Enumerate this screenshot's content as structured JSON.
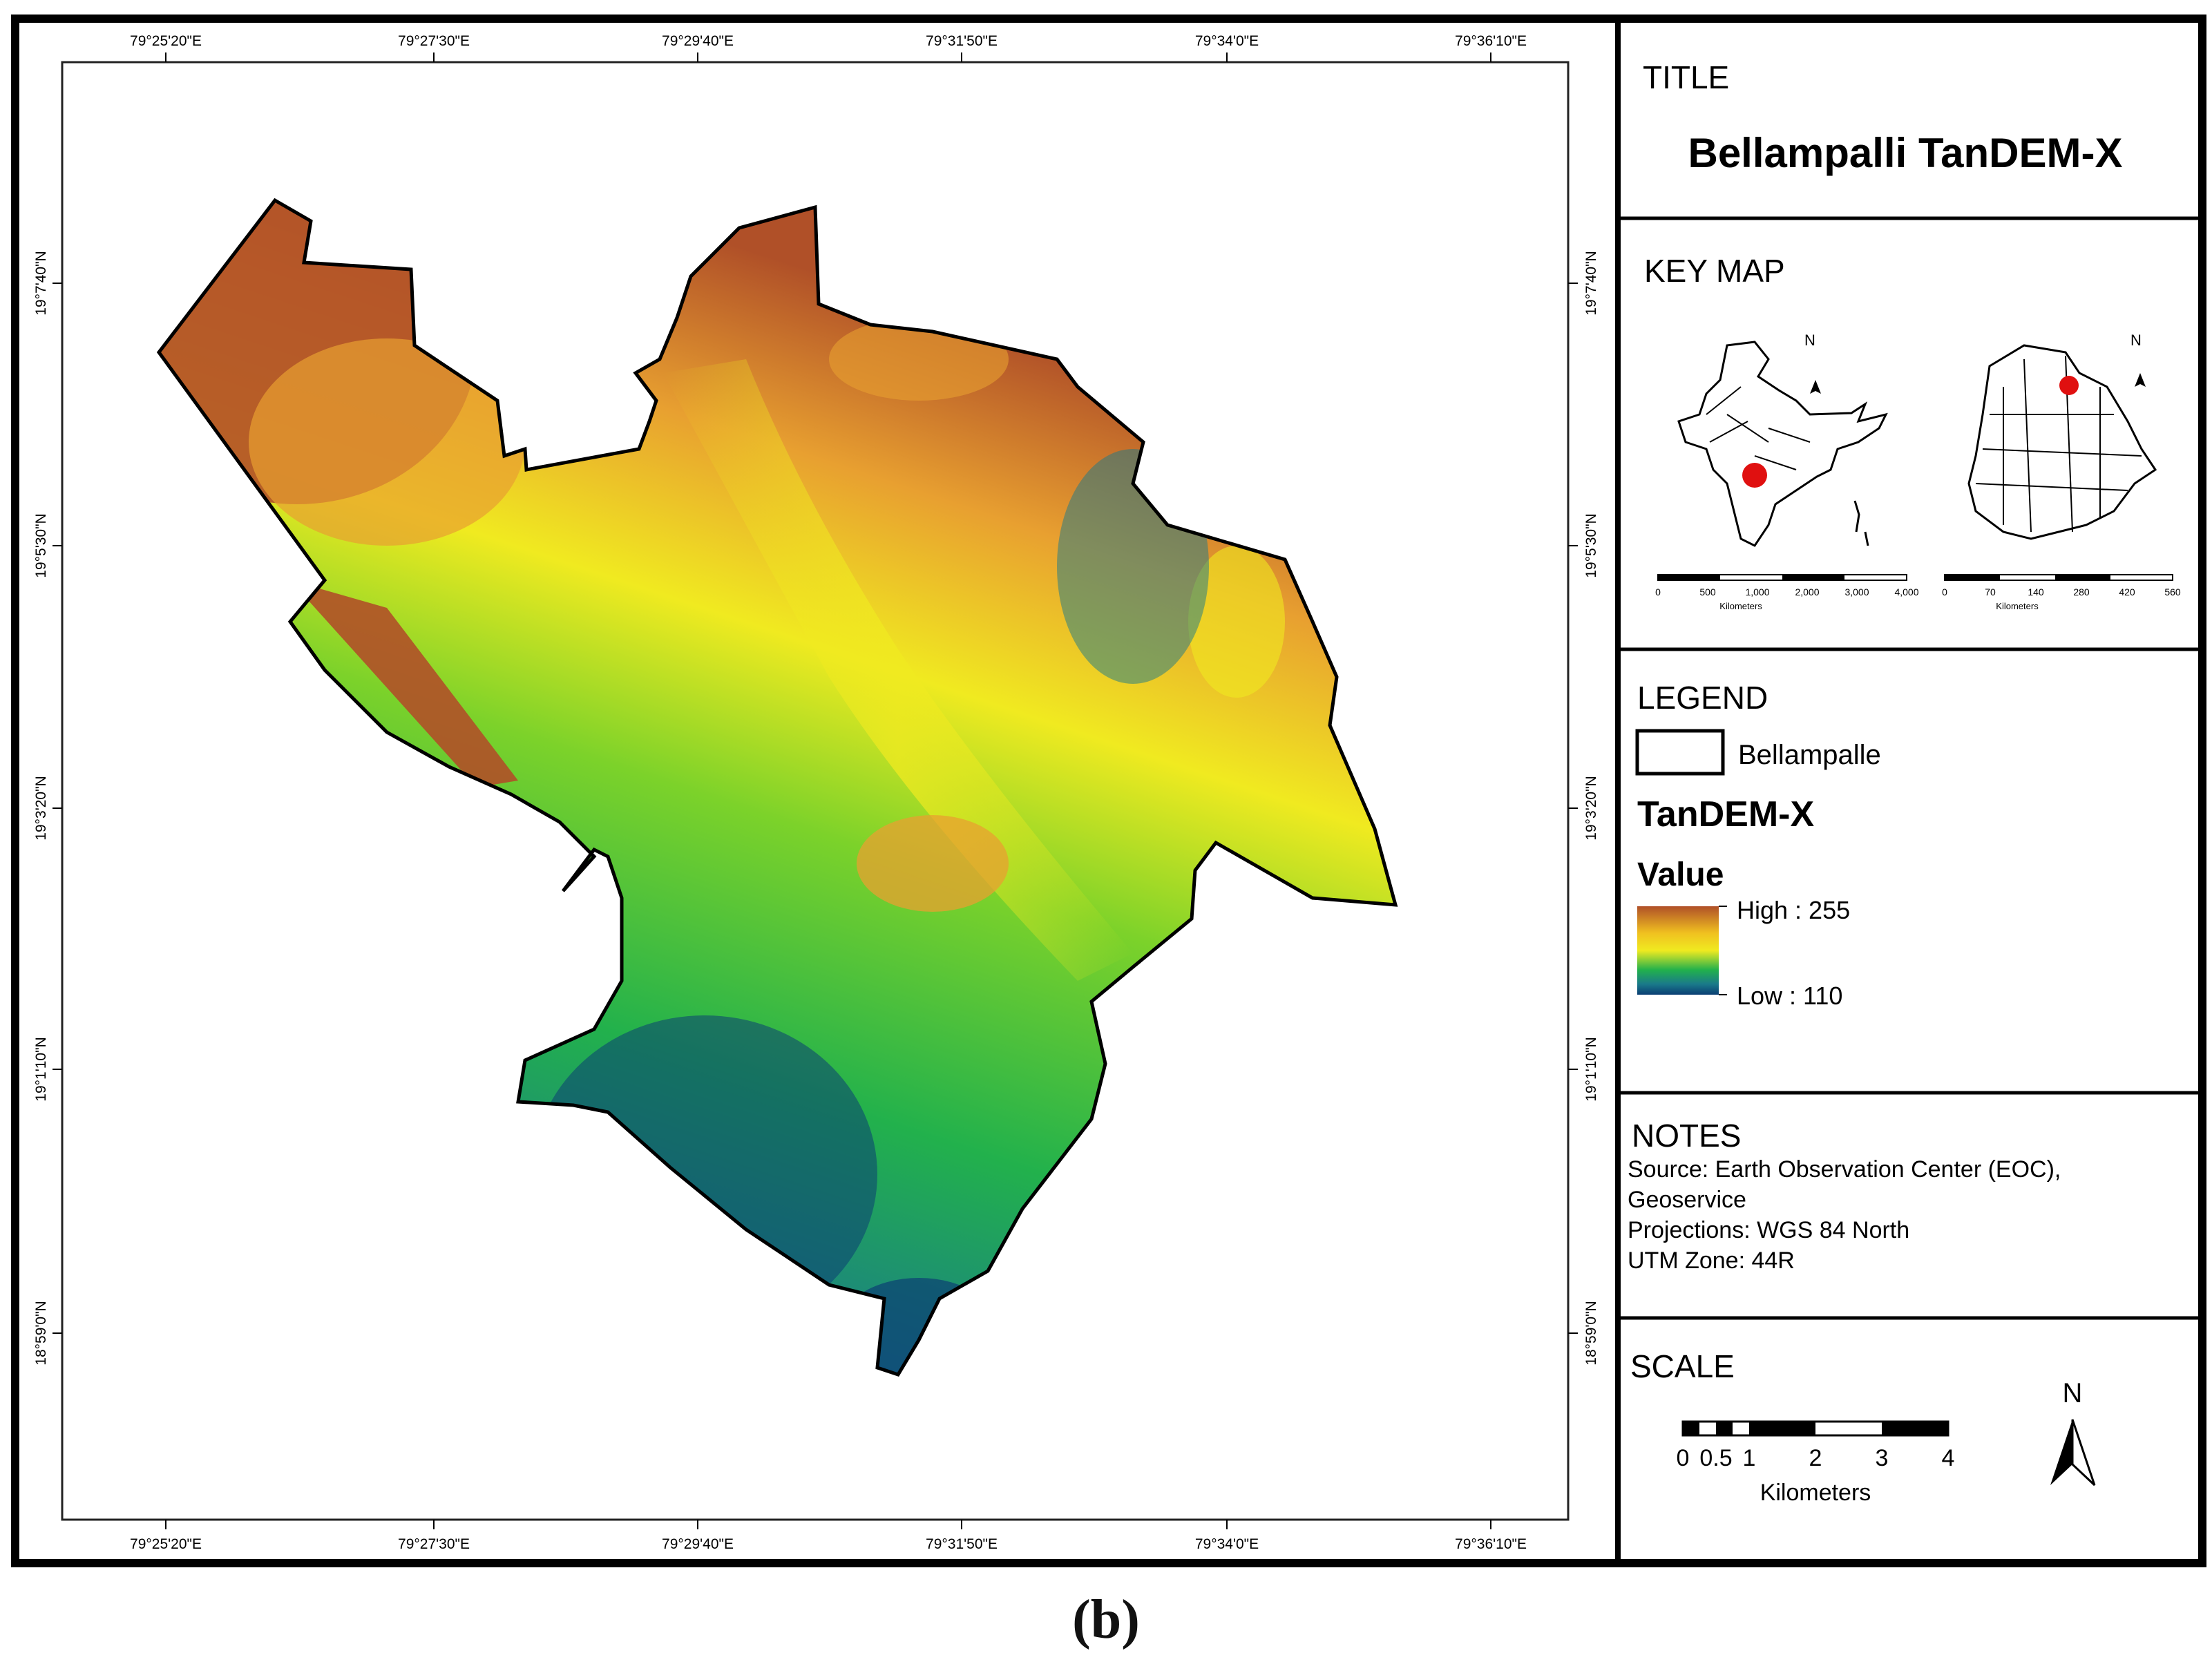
{
  "map": {
    "top_ticks": [
      "79°25'20\"E",
      "79°27'30\"E",
      "79°29'40\"E",
      "79°31'50\"E",
      "79°34'0\"E",
      "79°36'10\"E"
    ],
    "bottom_ticks": [
      "79°25'20\"E",
      "79°27'30\"E",
      "79°29'40\"E",
      "79°31'50\"E",
      "79°34'0\"E",
      "79°36'10\"E"
    ],
    "left_ticks": [
      "19°7'40\"N",
      "19°5'30\"N",
      "19°3'20\"N",
      "19°1'10\"N",
      "18°59'0\"N"
    ],
    "right_ticks": [
      "19°7'40\"N",
      "19°5'30\"N",
      "19°3'20\"N",
      "19°1'10\"N",
      "18°59'0\"N"
    ],
    "colors": {
      "low": "#0b3e73",
      "mid": "#22b14c",
      "high_yellow": "#f0ea20",
      "high": "#b05028"
    }
  },
  "panel": {
    "title_heading": "TITLE",
    "title_text": "Bellampalli TanDEM-X",
    "keymap_heading": "KEY MAP",
    "keymap_india_scale": [
      "0",
      "500",
      "1,000",
      "2,000",
      "3,000",
      "4,000"
    ],
    "keymap_india_units": "Kilometers",
    "keymap_state_scale": [
      "0",
      "70",
      "140",
      "280",
      "420",
      "560"
    ],
    "keymap_state_units": "Kilometers",
    "north_small": "N",
    "legend_heading": "LEGEND",
    "legend_boundary": "Bellampalle",
    "legend_layer": "TanDEM-X",
    "legend_value": "Value",
    "legend_high": "High : 255",
    "legend_low": "Low : 110",
    "notes_heading": "NOTES",
    "notes_lines": [
      "Source: Earth Observation Center (EOC),",
      "Geoservice",
      "Projections: WGS 84 North",
      "UTM Zone: 44R"
    ],
    "scale_heading": "SCALE",
    "scale_labels": [
      "0",
      "0.5",
      "1",
      "2",
      "3",
      "4"
    ],
    "scale_units": "Kilometers",
    "north_label": "N"
  },
  "caption": "(b)"
}
